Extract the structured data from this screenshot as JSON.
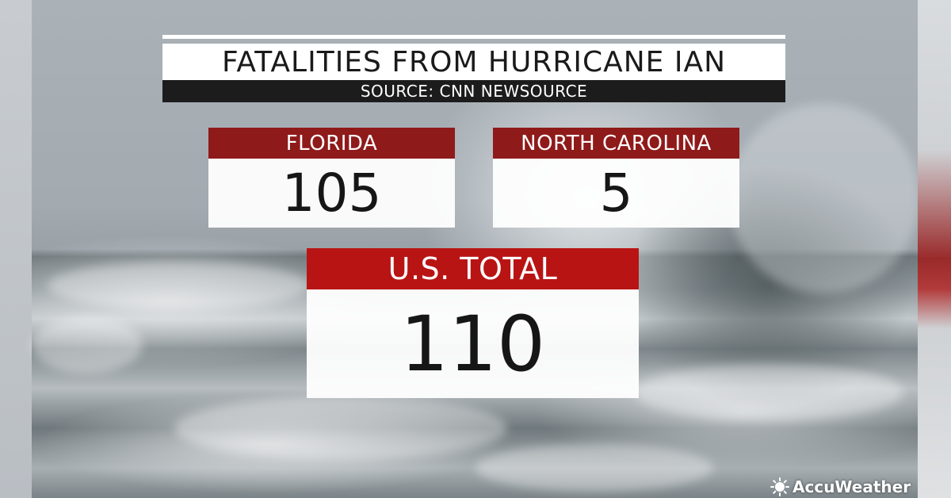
{
  "title": "FATALITIES FROM HURRICANE IAN",
  "source": "SOURCE: CNN NEWSOURCE",
  "cards": [
    {
      "label": "FLORIDA",
      "value": "105"
    },
    {
      "label": "NORTH CAROLINA",
      "value": "5"
    }
  ],
  "total": {
    "label": "U.S. TOTAL",
    "value": "110"
  },
  "logo": {
    "text": "AccuWeather",
    "icon": "sun-icon"
  },
  "colors": {
    "card_header": "#8f1a1a",
    "total_header": "#b91414",
    "source_bar": "#1c1c1c"
  }
}
